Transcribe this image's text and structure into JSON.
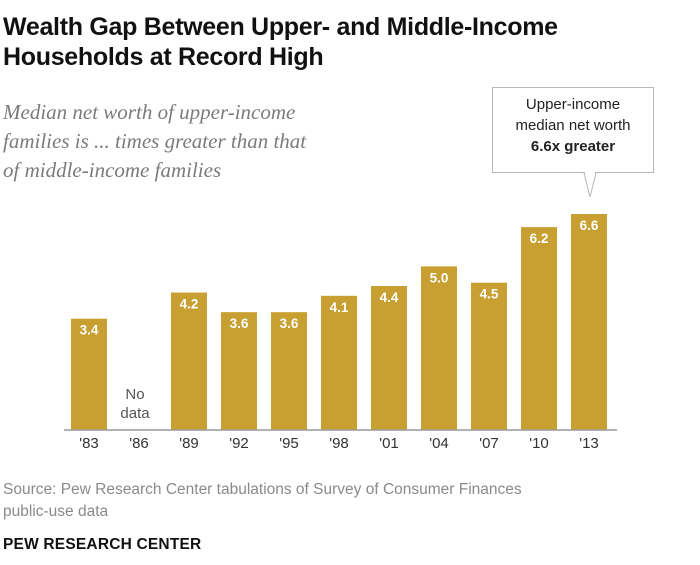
{
  "header": {
    "title_line1": "Wealth Gap Between Upper- and Middle-Income",
    "title_line2": "Households at Record High",
    "subtitle_line1": "Median net worth of upper-income",
    "subtitle_line2": "families is ... times greater than that",
    "subtitle_line3": "of middle-income families"
  },
  "callout": {
    "line1": "Upper-income",
    "line2": "median net worth",
    "line3": "6.6x greater"
  },
  "no_data": {
    "line1": "No",
    "line2": "data"
  },
  "footer": {
    "source_line1": "Source: Pew Research Center tabulations of Survey of Consumer Finances",
    "source_line2": "public-use data",
    "brand": "PEW RESEARCH CENTER"
  },
  "colors": {
    "bar": "#c8a031",
    "bar_label": "#ffffff",
    "axis": "#999999",
    "tick_text": "#333333"
  },
  "chart_data": {
    "type": "bar",
    "title": "Wealth Gap Between Upper- and Middle-Income Households at Record High",
    "subtitle": "Median net worth of upper-income families is ... times greater than that of middle-income families",
    "xlabel": "",
    "ylabel": "",
    "categories": [
      "'83",
      "'86",
      "'89",
      "'92",
      "'95",
      "'98",
      "'01",
      "'04",
      "'07",
      "'10",
      "'13"
    ],
    "values": [
      3.4,
      null,
      4.2,
      3.6,
      3.6,
      4.1,
      4.4,
      5.0,
      4.5,
      6.2,
      6.6
    ],
    "value_labels": [
      "3.4",
      "",
      "4.2",
      "3.6",
      "3.6",
      "4.1",
      "4.4",
      "5.0",
      "4.5",
      "6.2",
      "6.6"
    ],
    "ylim": [
      0,
      6.6
    ],
    "grid": false,
    "annotations": [
      "No data ('86)",
      "Upper-income median net worth 6.6x greater ('13)"
    ]
  }
}
